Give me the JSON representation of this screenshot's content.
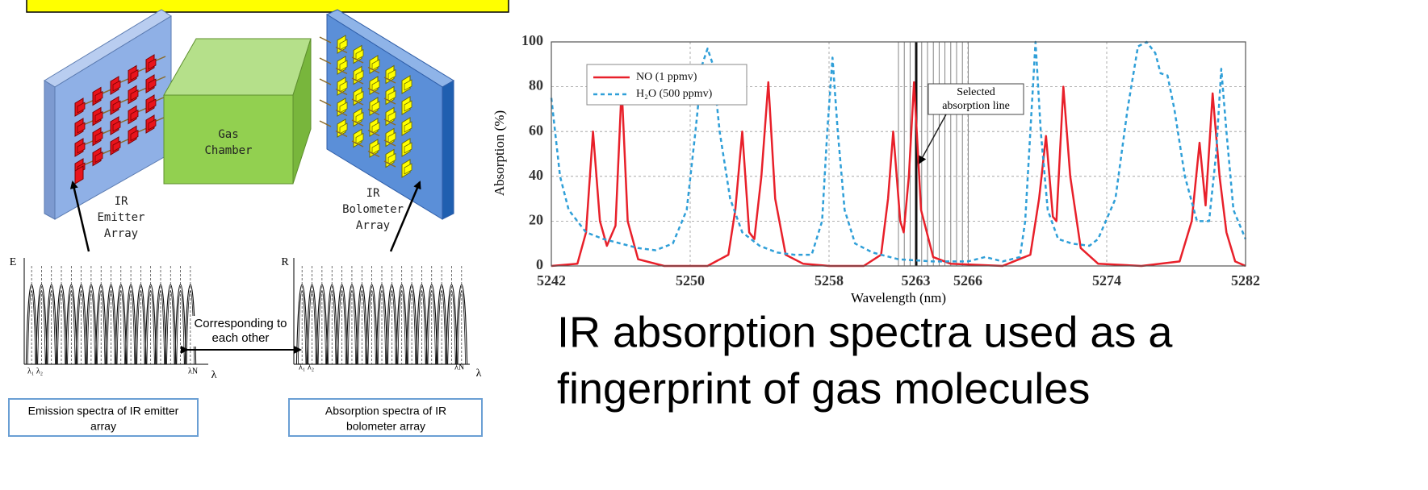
{
  "diagram": {
    "gas_chamber": [
      "Gas",
      "Chamber"
    ],
    "emitter_label": [
      "IR",
      "Emitter",
      "Array"
    ],
    "bolometer_label": [
      "IR",
      "Bolometer",
      "Array"
    ],
    "emission_axis_y": "E",
    "emission_axis_x": "λ",
    "emission_first": "λ₁ λ₂",
    "emission_last": "λN",
    "absorption_axis_y": "R",
    "absorption_axis_x": "λ",
    "absorption_first": "λ₁ λ₂",
    "absorption_last": "λN",
    "correspondence": [
      "Corresponding to",
      "each other"
    ],
    "emission_box": [
      "Emission spectra of IR emitter",
      "array"
    ],
    "absorption_box": [
      "Absorption spectra of IR",
      "bolometer array"
    ]
  },
  "caption": [
    "IR absorption spectra used as a",
    "fingerprint of gas molecules"
  ],
  "chart_data": {
    "type": "line",
    "x_label": "Wavelength (nm)",
    "y_label": "Absorption (%)",
    "xlim": [
      5242,
      5282
    ],
    "ylim": [
      0,
      100
    ],
    "xticks": [
      5242,
      5250,
      5258,
      5263,
      5266,
      5274,
      5282
    ],
    "yticks": [
      0,
      20,
      40,
      60,
      80,
      100
    ],
    "grid": true,
    "annotation": [
      "Selected",
      "absorption line"
    ],
    "series": [
      {
        "name": "NO (1 ppmv)",
        "color": "#e8202a",
        "linestyle": "solid",
        "x": [
          5242,
          5243.5,
          5244.0,
          5244.4,
          5244.8,
          5245.2,
          5245.7,
          5246.05,
          5246.4,
          5247.0,
          5248.5,
          5251,
          5252.2,
          5252.6,
          5253.0,
          5253.4,
          5253.7,
          5254.1,
          5254.5,
          5254.9,
          5255.5,
          5256.5,
          5258,
          5260,
          5261.0,
          5261.4,
          5261.7,
          5262.1,
          5262.3,
          5262.6,
          5262.9,
          5263.3,
          5264,
          5265,
          5268,
          5269.6,
          5270.1,
          5270.5,
          5270.9,
          5271.1,
          5271.5,
          5271.9,
          5272.5,
          5273.5,
          5276,
          5278.2,
          5278.9,
          5279.35,
          5279.7,
          5280.1,
          5280.5,
          5280.9,
          5281.4,
          5282
        ],
        "values": [
          0,
          1,
          15,
          60,
          20,
          9,
          18,
          80,
          20,
          3,
          0,
          0,
          5,
          25,
          60,
          15,
          12,
          40,
          82,
          30,
          5,
          1,
          0,
          0,
          5,
          30,
          60,
          20,
          15,
          40,
          82,
          25,
          4,
          1,
          0,
          5,
          30,
          58,
          22,
          20,
          80,
          40,
          8,
          1,
          0,
          2,
          20,
          55,
          27,
          77,
          40,
          15,
          2,
          0
        ]
      },
      {
        "name": "H₂O (500 ppmv)",
        "color": "#2f9fd8",
        "linestyle": "dashed",
        "x": [
          5242,
          5242.5,
          5243,
          5244,
          5245,
          5246,
          5247,
          5248,
          5249,
          5249.8,
          5250.3,
          5250.7,
          5251.0,
          5251.3,
          5251.7,
          5252.3,
          5253,
          5254,
          5255,
          5256,
          5257,
          5257.6,
          5257.9,
          5258.2,
          5258.5,
          5258.9,
          5259.5,
          5260.5,
          5262,
          5264,
          5266,
          5267,
          5268,
          5269,
          5269.3,
          5269.6,
          5269.9,
          5270.2,
          5270.6,
          5271.2,
          5272,
          5273,
          5273.5,
          5274.5,
          5275.2,
          5275.8,
          5276.3,
          5276.8,
          5277.1,
          5277.5,
          5277.9,
          5278.5,
          5279.2,
          5279.9,
          5280.3,
          5280.6,
          5280.9,
          5281.3,
          5282
        ],
        "values": [
          75,
          40,
          25,
          15,
          12,
          10,
          8,
          7,
          10,
          25,
          60,
          90,
          97,
          90,
          60,
          30,
          15,
          9,
          6,
          5,
          5,
          20,
          60,
          93,
          60,
          25,
          10,
          6,
          3,
          2,
          2,
          4,
          2,
          4,
          20,
          60,
          100,
          60,
          25,
          12,
          10,
          9,
          12,
          30,
          70,
          98,
          100,
          95,
          86,
          85,
          70,
          40,
          20,
          20,
          50,
          88,
          60,
          25,
          12
        ]
      }
    ]
  }
}
